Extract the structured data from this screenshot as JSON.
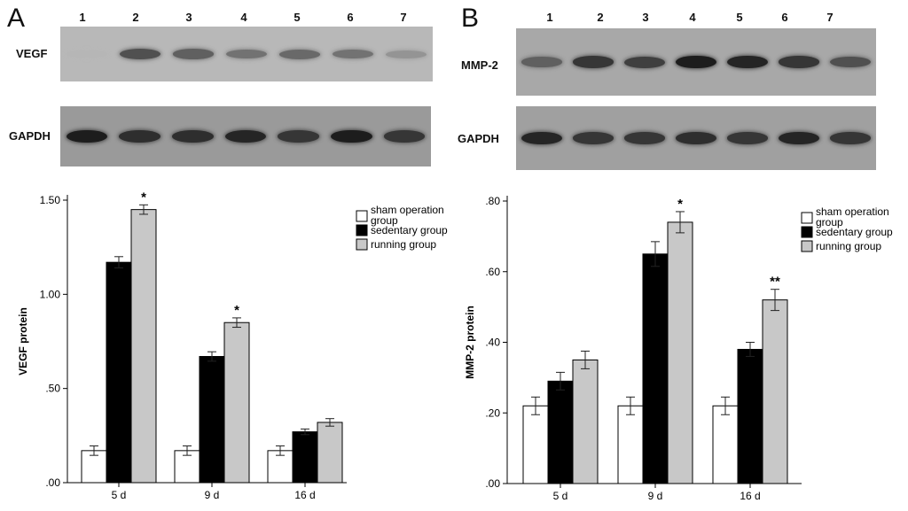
{
  "panels": [
    {
      "letter": "A",
      "lanes": [
        "1",
        "2",
        "3",
        "4",
        "5",
        "6",
        "7"
      ],
      "blots": [
        {
          "label": "VEGF",
          "bg": "#b8b8b8",
          "bands": [
            0.05,
            0.65,
            0.55,
            0.45,
            0.5,
            0.45,
            0.25
          ]
        },
        {
          "label": "GAPDH",
          "bg": "#9a9a9a",
          "bands": [
            0.95,
            0.85,
            0.85,
            0.9,
            0.8,
            0.95,
            0.8
          ]
        }
      ]
    },
    {
      "letter": "B",
      "lanes": [
        "1",
        "2",
        "3",
        "4",
        "5",
        "6",
        "7"
      ],
      "blots": [
        {
          "label": "MMP-2",
          "bg": "#a8a8a8",
          "bands": [
            0.55,
            0.8,
            0.75,
            0.95,
            0.9,
            0.8,
            0.65
          ]
        },
        {
          "label": "GAPDH",
          "bg": "#a0a0a0",
          "bands": [
            0.9,
            0.8,
            0.8,
            0.85,
            0.8,
            0.9,
            0.8
          ]
        }
      ]
    }
  ],
  "chart_data": [
    {
      "type": "bar",
      "categories": [
        "5 d",
        "9 d",
        "16 d"
      ],
      "series": [
        {
          "name": "sham operation group",
          "values": [
            0.17,
            0.17,
            0.17
          ],
          "errors": [
            0.025,
            0.025,
            0.025
          ],
          "color": "#ffffff"
        },
        {
          "name": "sedentary group",
          "values": [
            1.17,
            0.67,
            0.27
          ],
          "errors": [
            0.03,
            0.025,
            0.015
          ],
          "color": "#000000"
        },
        {
          "name": "running group",
          "values": [
            1.45,
            0.85,
            0.32
          ],
          "errors": [
            0.025,
            0.025,
            0.02
          ],
          "color": "#c8c8c8"
        }
      ],
      "annotations": [
        {
          "category": "5 d",
          "series": "running group",
          "text": "*"
        },
        {
          "category": "9 d",
          "series": "running group",
          "text": "*"
        }
      ],
      "yticks": [
        0,
        0.5,
        1.0,
        1.5
      ],
      "yticklabels": [
        ".00",
        ".50",
        "1.00",
        "1.50"
      ],
      "ylim": [
        0,
        1.5
      ],
      "ylabel": "VEGF protein",
      "xlabel": "",
      "legend": "top-right"
    },
    {
      "type": "bar",
      "categories": [
        "5 d",
        "9 d",
        "16 d"
      ],
      "series": [
        {
          "name": "sham operation group",
          "values": [
            0.22,
            0.22,
            0.22
          ],
          "errors": [
            0.025,
            0.025,
            0.025
          ],
          "color": "#ffffff"
        },
        {
          "name": "sedentary group",
          "values": [
            0.29,
            0.65,
            0.38
          ],
          "errors": [
            0.025,
            0.035,
            0.02
          ],
          "color": "#000000"
        },
        {
          "name": "running group",
          "values": [
            0.35,
            0.74,
            0.52
          ],
          "errors": [
            0.025,
            0.03,
            0.03
          ],
          "color": "#c8c8c8"
        }
      ],
      "annotations": [
        {
          "category": "9 d",
          "series": "running group",
          "text": "*"
        },
        {
          "category": "16 d",
          "series": "running group",
          "text": "**"
        }
      ],
      "yticks": [
        0,
        0.2,
        0.4,
        0.6,
        0.8
      ],
      "yticklabels": [
        ".00",
        ".20",
        ".40",
        ".60",
        ".80"
      ],
      "ylim": [
        0,
        0.8
      ],
      "ylabel": "MMP-2 protein",
      "xlabel": "",
      "legend": "top-right"
    }
  ]
}
